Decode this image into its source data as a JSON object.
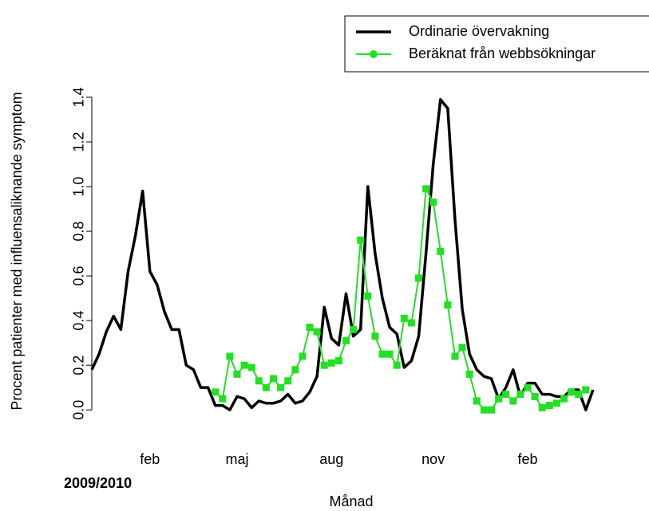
{
  "chart_data": {
    "type": "line",
    "x_label": "Månad",
    "y_label": "Procent patienter med influensaliknande symptom",
    "annotation": "2009/2010",
    "categories": [
      null,
      null,
      null,
      null,
      null,
      null,
      null,
      null,
      "feb",
      null,
      null,
      null,
      null,
      null,
      null,
      null,
      null,
      null,
      null,
      null,
      "maj",
      null,
      null,
      null,
      null,
      null,
      null,
      null,
      null,
      null,
      null,
      null,
      null,
      "aug",
      null,
      null,
      null,
      null,
      null,
      null,
      null,
      null,
      null,
      null,
      null,
      null,
      null,
      "nov",
      null,
      null,
      null,
      null,
      null,
      null,
      null,
      null,
      null,
      null,
      null,
      null,
      "feb",
      null,
      null,
      null,
      null,
      null,
      null,
      null,
      null,
      null
    ],
    "series": [
      {
        "name": "Ordinarie övervakning",
        "color": "#000000",
        "marker": "none",
        "values": [
          0.18,
          0.25,
          0.35,
          0.42,
          0.36,
          0.62,
          0.78,
          0.98,
          0.62,
          0.56,
          0.44,
          0.36,
          0.36,
          0.2,
          0.18,
          0.1,
          0.1,
          0.02,
          0.02,
          0.0,
          0.06,
          0.05,
          0.01,
          0.04,
          0.03,
          0.03,
          0.04,
          0.07,
          0.03,
          0.04,
          0.08,
          0.15,
          0.46,
          0.32,
          0.29,
          0.52,
          0.33,
          0.36,
          1.0,
          0.7,
          0.5,
          0.37,
          0.34,
          0.19,
          0.22,
          0.33,
          0.7,
          1.1,
          1.39,
          1.35,
          0.85,
          0.45,
          0.25,
          0.18,
          0.15,
          0.14,
          0.05,
          0.1,
          0.18,
          0.06,
          0.12,
          0.12,
          0.07,
          0.07,
          0.06,
          0.06,
          0.09,
          0.09,
          0.0,
          0.09
        ]
      },
      {
        "name": "Beräknat från webbsökningar",
        "color": "#22e022",
        "marker": "square",
        "values": [
          null,
          null,
          null,
          null,
          null,
          null,
          null,
          null,
          null,
          null,
          null,
          null,
          null,
          null,
          null,
          null,
          null,
          0.08,
          0.05,
          0.24,
          0.16,
          0.2,
          0.19,
          0.13,
          0.1,
          0.14,
          0.1,
          0.13,
          0.18,
          0.24,
          0.37,
          0.35,
          0.2,
          0.21,
          0.22,
          0.31,
          0.36,
          0.76,
          0.51,
          0.33,
          0.25,
          0.25,
          0.2,
          0.41,
          0.39,
          0.59,
          0.99,
          0.93,
          0.71,
          0.47,
          0.24,
          0.28,
          0.16,
          0.04,
          0.0,
          0.0,
          0.05,
          0.07,
          0.04,
          0.07,
          0.1,
          0.06,
          0.01,
          0.02,
          0.03,
          0.05,
          0.08,
          0.07,
          0.09,
          null
        ]
      }
    ],
    "ylim": [
      -0.06,
      1.45
    ],
    "yticks": [
      {
        "value": 0,
        "label": "0.0"
      },
      {
        "value": 0.2,
        "label": "0.2"
      },
      {
        "value": 0.4,
        "label": "0.4"
      },
      {
        "value": 0.6,
        "label": "0.6"
      },
      {
        "value": 0.8,
        "label": "0.8"
      },
      {
        "value": 1.0,
        "label": "1.0"
      },
      {
        "value": 1.2,
        "label": "1.2"
      },
      {
        "value": 1.4,
        "label": "1.4"
      }
    ],
    "legend": "topright",
    "grid": false
  }
}
